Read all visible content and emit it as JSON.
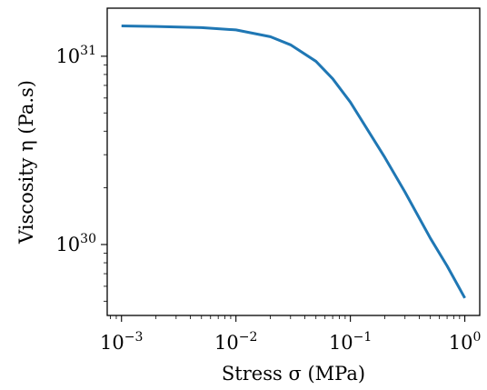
{
  "chart_data": {
    "type": "line",
    "title": "",
    "x_scale": "log",
    "y_scale": "log",
    "xlabel": "Stress σ (MPa)",
    "ylabel": "Viscosity η (Pa.s)",
    "xlim": [
      0.00075,
      1.35
    ],
    "ylim": [
      4.2e+29,
      1.8e+31
    ],
    "grid": false,
    "x_ticks": [
      {
        "value": 0.001,
        "base": "10",
        "exp": "−3"
      },
      {
        "value": 0.01,
        "base": "10",
        "exp": "−2"
      },
      {
        "value": 0.1,
        "base": "10",
        "exp": "−1"
      },
      {
        "value": 1,
        "base": "10",
        "exp": "0"
      }
    ],
    "y_ticks": [
      {
        "value": 1e+30,
        "base": "10",
        "exp": "30"
      },
      {
        "value": 1e+31,
        "base": "10",
        "exp": "31"
      }
    ],
    "series": [
      {
        "color": "#1f77b4",
        "x": [
          0.001,
          0.002,
          0.005,
          0.01,
          0.02,
          0.03,
          0.05,
          0.07,
          0.1,
          0.2,
          0.3,
          0.5,
          0.7,
          1.0
        ],
        "y": [
          1.45e+31,
          1.44e+31,
          1.42e+31,
          1.38e+31,
          1.27e+31,
          1.15e+31,
          9.4e+30,
          7.6e+30,
          5.7e+30,
          2.9e+30,
          1.9e+30,
          1.08e+30,
          7.7e+29,
          5.2e+29
        ]
      }
    ]
  }
}
